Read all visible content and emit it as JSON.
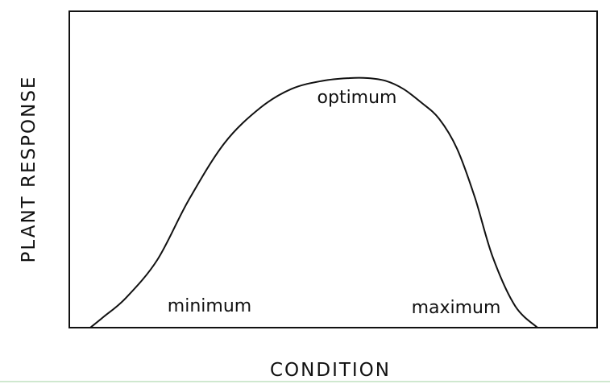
{
  "chart_data": {
    "type": "line",
    "title": "",
    "xlabel": "CONDITION",
    "ylabel": "PLANT RESPONSE",
    "grid": false,
    "legend": "none",
    "xlim": [
      0,
      100
    ],
    "ylim": [
      0,
      100
    ],
    "series": [
      {
        "x": [
          0,
          3,
          8,
          15,
          22,
          30,
          38,
          45,
          52,
          58,
          62,
          66,
          70,
          74,
          78,
          82,
          86,
          90,
          95,
          100
        ],
        "y": [
          0,
          4,
          11,
          25,
          47,
          68,
          81,
          88,
          91,
          92,
          92,
          91,
          88,
          83,
          77,
          66,
          48,
          26,
          8,
          0
        ]
      }
    ],
    "annotations": [
      "optimum",
      "minimum",
      "maximum"
    ]
  },
  "colors": {
    "ink": "#111111",
    "background": "#ffffff"
  }
}
